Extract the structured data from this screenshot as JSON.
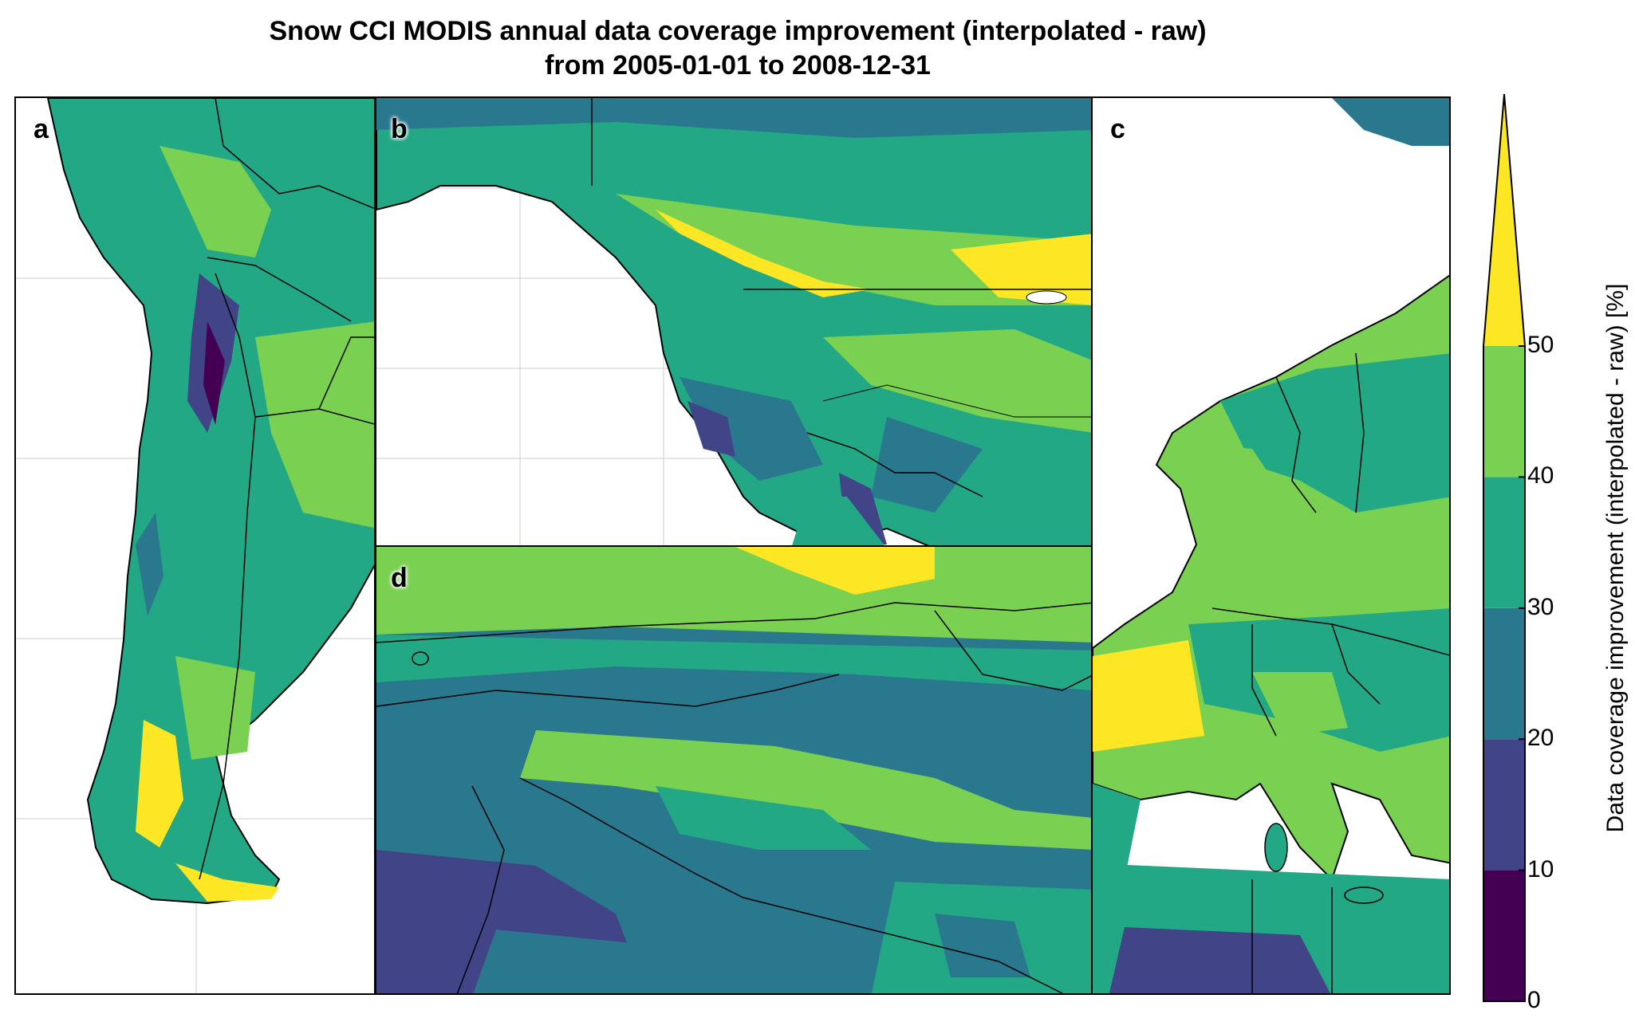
{
  "title": {
    "line1": "Snow CCI MODIS annual data coverage improvement (interpolated - raw)",
    "line2": "from 2005-01-01 to 2008-12-31"
  },
  "panels": [
    {
      "id": "a",
      "label": "a"
    },
    {
      "id": "b",
      "label": "b"
    },
    {
      "id": "c",
      "label": "c"
    },
    {
      "id": "d",
      "label": "d"
    }
  ],
  "colorbar": {
    "label": "Data coverage improvement (interpolated - raw) [%]",
    "ticks": [
      "0",
      "10",
      "20",
      "30",
      "40",
      "50"
    ],
    "colors": [
      "#440154",
      "#414487",
      "#2a788e",
      "#22a884",
      "#7ad151",
      "#fde725"
    ],
    "extend": "max"
  },
  "colors": {
    "ocean": "#ffffff",
    "border": "#000000"
  }
}
